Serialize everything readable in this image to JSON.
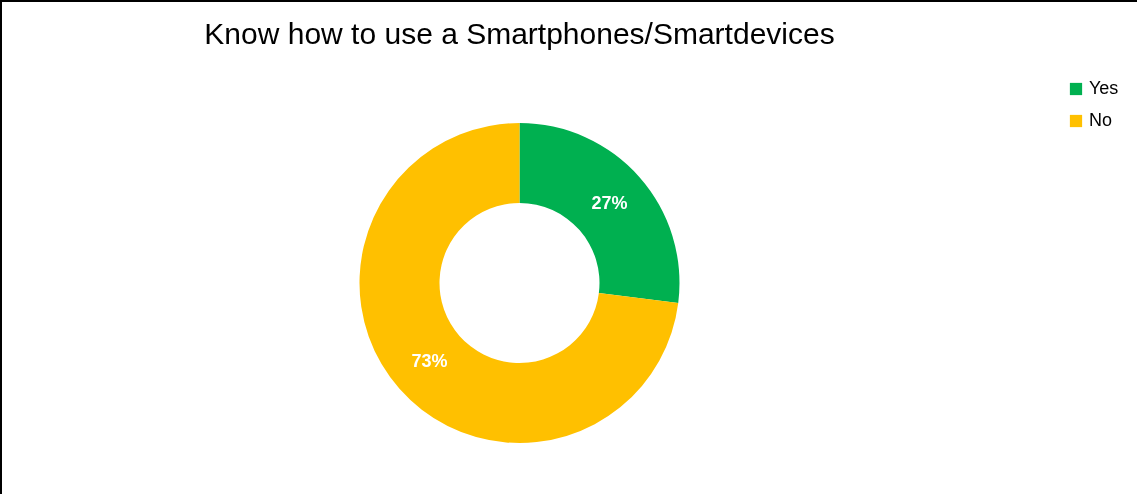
{
  "chart_data": {
    "type": "donut",
    "title": "Know how to use a Smartphones/Smartdevices",
    "categories": [
      "Yes",
      "No"
    ],
    "values": [
      27,
      73
    ],
    "colors": [
      "#00b050",
      "#ffc000"
    ],
    "value_labels": [
      "27%",
      "73%"
    ],
    "legend": "right"
  }
}
